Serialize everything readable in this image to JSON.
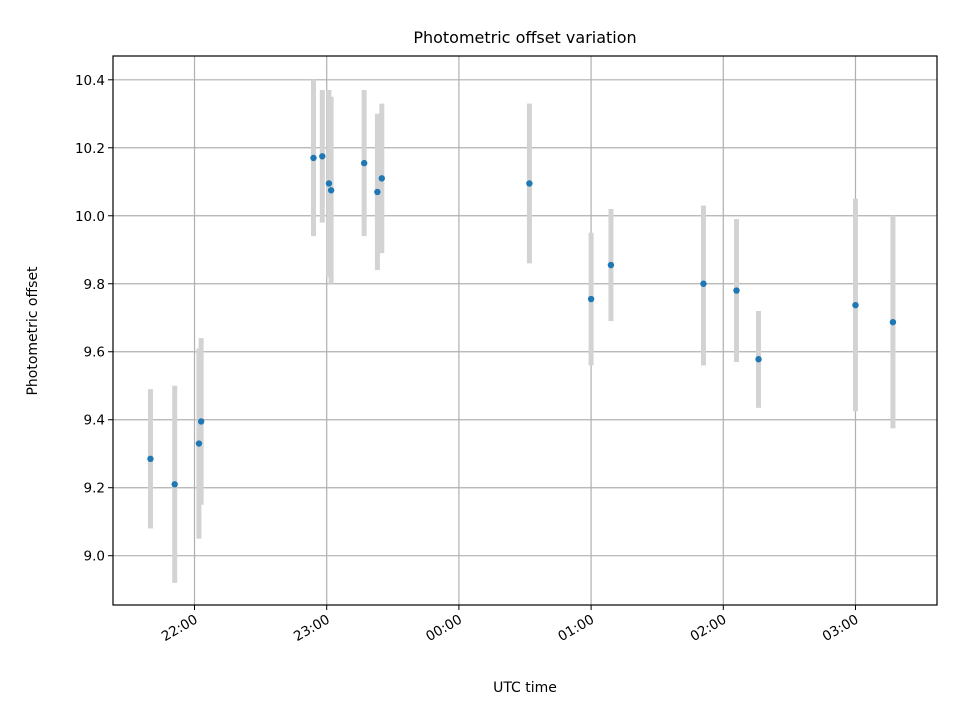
{
  "chart_data": {
    "type": "scatter",
    "title": "Photometric offset variation",
    "xlabel": "UTC time",
    "ylabel": "Photometric offset",
    "x_axis_type": "time",
    "xlim": [
      "21:23",
      "03:37"
    ],
    "ylim": [
      8.855,
      10.47
    ],
    "grid": true,
    "x_ticks": [
      "22:00",
      "23:00",
      "00:00",
      "01:00",
      "02:00",
      "03:00"
    ],
    "y_ticks": [
      "9.0",
      "9.2",
      "9.4",
      "9.6",
      "9.8",
      "10.0",
      "10.2",
      "10.4"
    ],
    "series": [
      {
        "marker_color": "#1f77b4",
        "errorbar_color": "#d3d3d3",
        "points": [
          {
            "x": "21:40",
            "y": 9.285,
            "ylow": 9.08,
            "yhigh": 9.49
          },
          {
            "x": "21:51",
            "y": 9.21,
            "ylow": 8.92,
            "yhigh": 9.5
          },
          {
            "x": "22:02",
            "y": 9.33,
            "ylow": 9.05,
            "yhigh": 9.61
          },
          {
            "x": "22:03",
            "y": 9.395,
            "ylow": 9.15,
            "yhigh": 9.64
          },
          {
            "x": "22:54",
            "y": 10.17,
            "ylow": 9.94,
            "yhigh": 10.4
          },
          {
            "x": "22:58",
            "y": 10.175,
            "ylow": 9.98,
            "yhigh": 10.37
          },
          {
            "x": "23:01",
            "y": 10.095,
            "ylow": 9.82,
            "yhigh": 10.37
          },
          {
            "x": "23:02",
            "y": 10.075,
            "ylow": 9.8,
            "yhigh": 10.35
          },
          {
            "x": "23:17",
            "y": 10.155,
            "ylow": 9.94,
            "yhigh": 10.37
          },
          {
            "x": "23:23",
            "y": 10.07,
            "ylow": 9.84,
            "yhigh": 10.3
          },
          {
            "x": "23:25",
            "y": 10.11,
            "ylow": 9.89,
            "yhigh": 10.33
          },
          {
            "x": "00:32",
            "y": 10.095,
            "ylow": 9.86,
            "yhigh": 10.33
          },
          {
            "x": "01:00",
            "y": 9.755,
            "ylow": 9.56,
            "yhigh": 9.95
          },
          {
            "x": "01:09",
            "y": 9.855,
            "ylow": 9.69,
            "yhigh": 10.02
          },
          {
            "x": "01:51",
            "y": 9.8,
            "ylow": 9.56,
            "yhigh": 10.03
          },
          {
            "x": "02:06",
            "y": 9.78,
            "ylow": 9.57,
            "yhigh": 9.99
          },
          {
            "x": "02:16",
            "y": 9.578,
            "ylow": 9.435,
            "yhigh": 9.72
          },
          {
            "x": "03:00",
            "y": 9.737,
            "ylow": 9.425,
            "yhigh": 10.05
          },
          {
            "x": "03:17",
            "y": 9.687,
            "ylow": 9.375,
            "yhigh": 10.0
          }
        ]
      }
    ]
  }
}
